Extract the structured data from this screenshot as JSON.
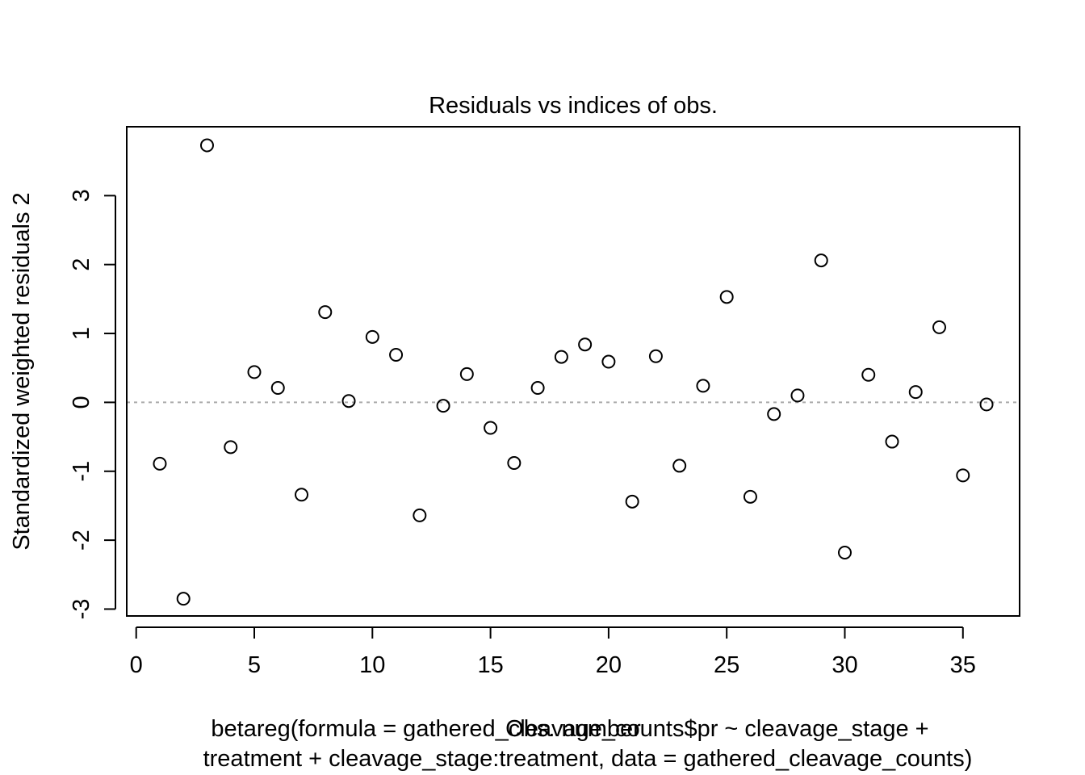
{
  "chart_data": {
    "type": "scatter",
    "title": "Residuals vs indices of obs.",
    "xlabel": "Obs. number",
    "ylabel": "Standardized weighted residuals 2",
    "subtitle_lines": [
      "betareg(formula = gathered_cleavage_counts$pr ~ cleavage_stage +",
      "treatment + cleavage_stage:treatment, data = gathered_cleavage_counts)"
    ],
    "xlim": [
      -0.4,
      37.4
    ],
    "ylim": [
      -3.1,
      4.0
    ],
    "x_ticks": [
      0,
      5,
      10,
      15,
      20,
      25,
      30,
      35
    ],
    "y_ticks": [
      -3,
      -2,
      -1,
      0,
      1,
      2,
      3
    ],
    "reference_line_y": 0,
    "reference_line_color": "#aaaaaa",
    "grid": false,
    "x": [
      1,
      2,
      3,
      4,
      5,
      6,
      7,
      8,
      9,
      10,
      11,
      12,
      13,
      14,
      15,
      16,
      17,
      18,
      19,
      20,
      21,
      22,
      23,
      24,
      25,
      26,
      27,
      28,
      29,
      30,
      31,
      32,
      33,
      34,
      35,
      36
    ],
    "y": [
      -0.89,
      -2.85,
      3.73,
      -0.65,
      0.44,
      0.21,
      -1.34,
      1.31,
      0.02,
      0.95,
      0.69,
      -1.64,
      -0.05,
      0.41,
      -0.37,
      -0.88,
      0.21,
      0.66,
      0.84,
      0.59,
      -1.44,
      0.67,
      -0.92,
      0.24,
      1.53,
      -1.37,
      -0.17,
      0.1,
      2.06,
      -2.18,
      0.4,
      -0.57,
      0.15,
      1.09,
      -1.06,
      -0.03
    ]
  }
}
